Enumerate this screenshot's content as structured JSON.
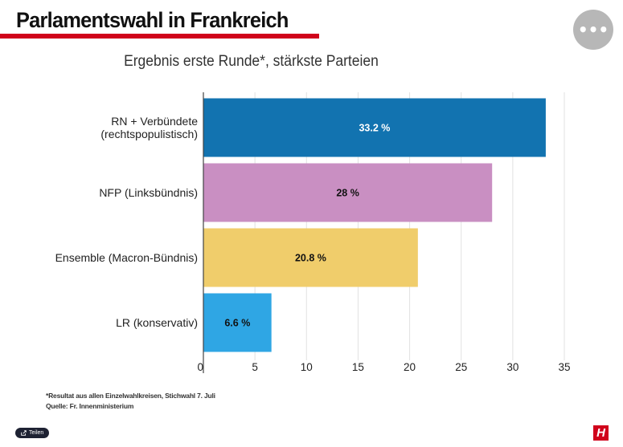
{
  "header": {
    "title": "Parlamentswahl in Frankreich",
    "menu_label": "•••"
  },
  "chart_data": {
    "type": "bar",
    "orientation": "horizontal",
    "title": "Ergebnis erste Runde*, stärkste Parteien",
    "categories": [
      "RN + Verbündete (rechtspopulistisch)",
      "NFP (Linksbündnis)",
      "Ensemble (Macron-Bündnis)",
      "LR (konservativ)"
    ],
    "category_lines": [
      [
        "RN + Verbündete",
        "(rechtspopulistisch)"
      ],
      [
        "NFP (Linksbündnis)"
      ],
      [
        "Ensemble (Macron-Bündnis)"
      ],
      [
        "LR (konservativ)"
      ]
    ],
    "values": [
      33.2,
      28,
      20.8,
      6.6
    ],
    "value_labels": [
      "33.2 %",
      "28 %",
      "20.8 %",
      "6.6 %"
    ],
    "colors": [
      "#1273b0",
      "#c98fc2",
      "#f0cd6b",
      "#2fa6e4"
    ],
    "label_colors": [
      "#ffffff",
      "#111111",
      "#111111",
      "#111111"
    ],
    "x_ticks": [
      0,
      5,
      10,
      15,
      20,
      25,
      30,
      35
    ],
    "xlim": [
      0,
      35
    ],
    "grid": true,
    "xlabel": "",
    "ylabel": ""
  },
  "footer": {
    "note": "*Resultat aus allen Einzelwahlkreisen, Stichwahl 7. Juli",
    "source": "Quelle: Fr. Innenministerium",
    "share_label": "Teilen",
    "logo_letter": "H"
  }
}
